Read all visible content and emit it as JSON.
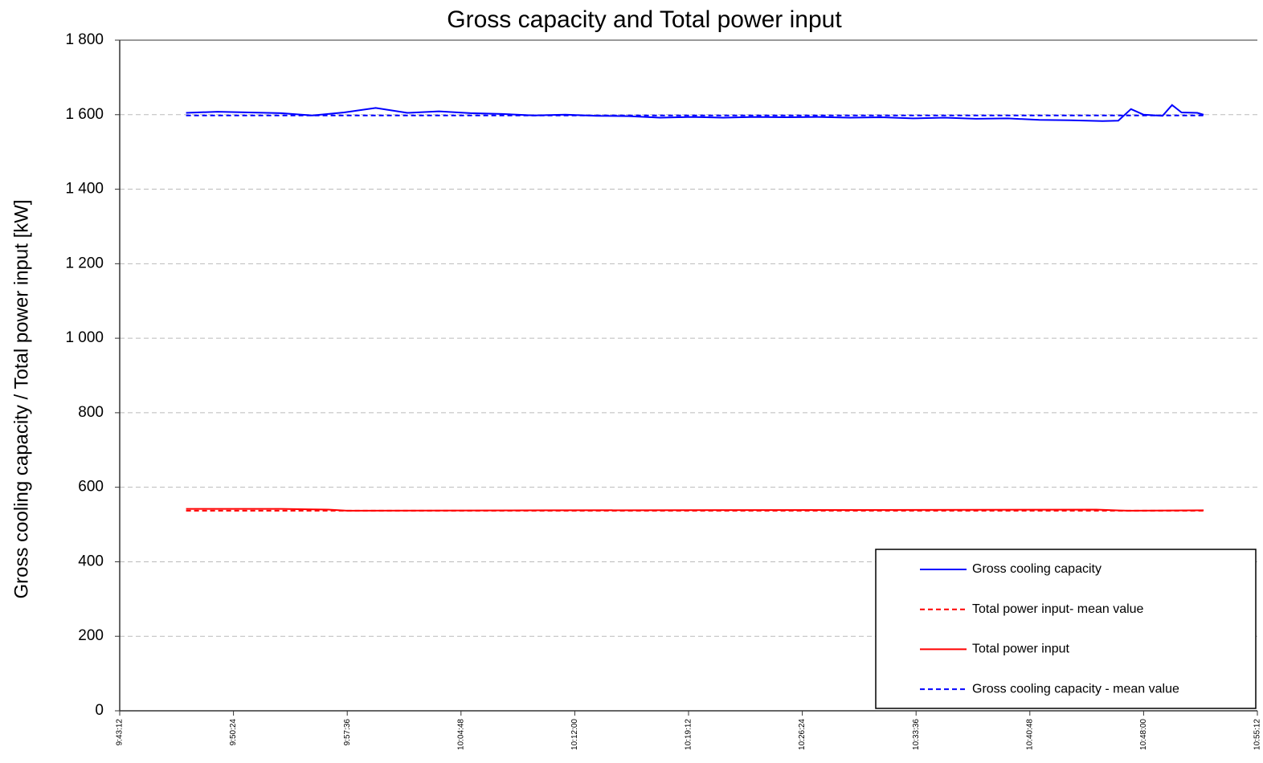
{
  "chart_data": {
    "type": "line",
    "title": "Gross capacity and Total power input",
    "ylabel": "Gross cooling capacity / Total power input [kW]",
    "xlim": [
      "9:43:12",
      "10:55:12"
    ],
    "xticks": [
      "9:43:12",
      "9:50:24",
      "9:57:36",
      "10:04:48",
      "10:12:00",
      "10:19:12",
      "10:26:24",
      "10:33:36",
      "10:40:48",
      "10:48:00",
      "10:55:12"
    ],
    "ylim": [
      0,
      1800
    ],
    "yticks": [
      0,
      200,
      400,
      600,
      800,
      {
        "value": 1000,
        "label": "1 000"
      },
      {
        "value": 1200,
        "label": "1 200"
      },
      {
        "value": 1400,
        "label": "1 400"
      },
      {
        "value": 1600,
        "label": "1 600"
      },
      {
        "value": 1800,
        "label": "1 800"
      }
    ],
    "grid": true,
    "legend": "lower right",
    "series": [
      {
        "name": "Gross cooling capacity",
        "color": "#0000ff",
        "dash": false,
        "x": [
          "9:47:24",
          "9:49:24",
          "9:51:24",
          "9:53:24",
          "9:55:24",
          "9:57:24",
          "9:59:24",
          "10:01:24",
          "10:03:24",
          "10:05:24",
          "10:07:24",
          "10:09:24",
          "10:11:24",
          "10:13:24",
          "10:15:24",
          "10:17:24",
          "10:19:24",
          "10:21:24",
          "10:23:24",
          "10:25:24",
          "10:27:24",
          "10:29:24",
          "10:31:24",
          "10:33:24",
          "10:35:24",
          "10:37:24",
          "10:39:24",
          "10:41:24",
          "10:43:24",
          "10:45:24",
          "10:46:24",
          "10:47:12",
          "10:48:00",
          "10:49:12",
          "10:49:48",
          "10:50:24",
          "10:51:24",
          "10:51:48"
        ],
        "values": [
          1605,
          1608,
          1606,
          1604,
          1598,
          1606,
          1618,
          1605,
          1609,
          1604,
          1602,
          1598,
          1600,
          1597,
          1596,
          1592,
          1594,
          1592,
          1594,
          1593,
          1594,
          1592,
          1593,
          1590,
          1592,
          1589,
          1590,
          1586,
          1585,
          1583,
          1584,
          1615,
          1600,
          1597,
          1626,
          1606,
          1605,
          1600
        ]
      },
      {
        "name": "Total power input- mean value",
        "color": "#ff0000",
        "dash": true,
        "x": [
          "9:47:24",
          "10:51:48"
        ],
        "values": [
          537,
          537
        ]
      },
      {
        "name": "Total power input",
        "color": "#ff0000",
        "dash": false,
        "x": [
          "9:47:24",
          "9:53:24",
          "9:56:24",
          "9:57:36",
          "10:10:00",
          "10:30:00",
          "10:45:00",
          "10:47:00",
          "10:51:48"
        ],
        "values": [
          542,
          542,
          540,
          537,
          538,
          539,
          540,
          537,
          538
        ]
      },
      {
        "name": "Gross cooling capacity - mean value",
        "color": "#0000ff",
        "dash": true,
        "x": [
          "9:47:24",
          "10:51:48"
        ],
        "values": [
          1598,
          1598
        ]
      }
    ]
  }
}
